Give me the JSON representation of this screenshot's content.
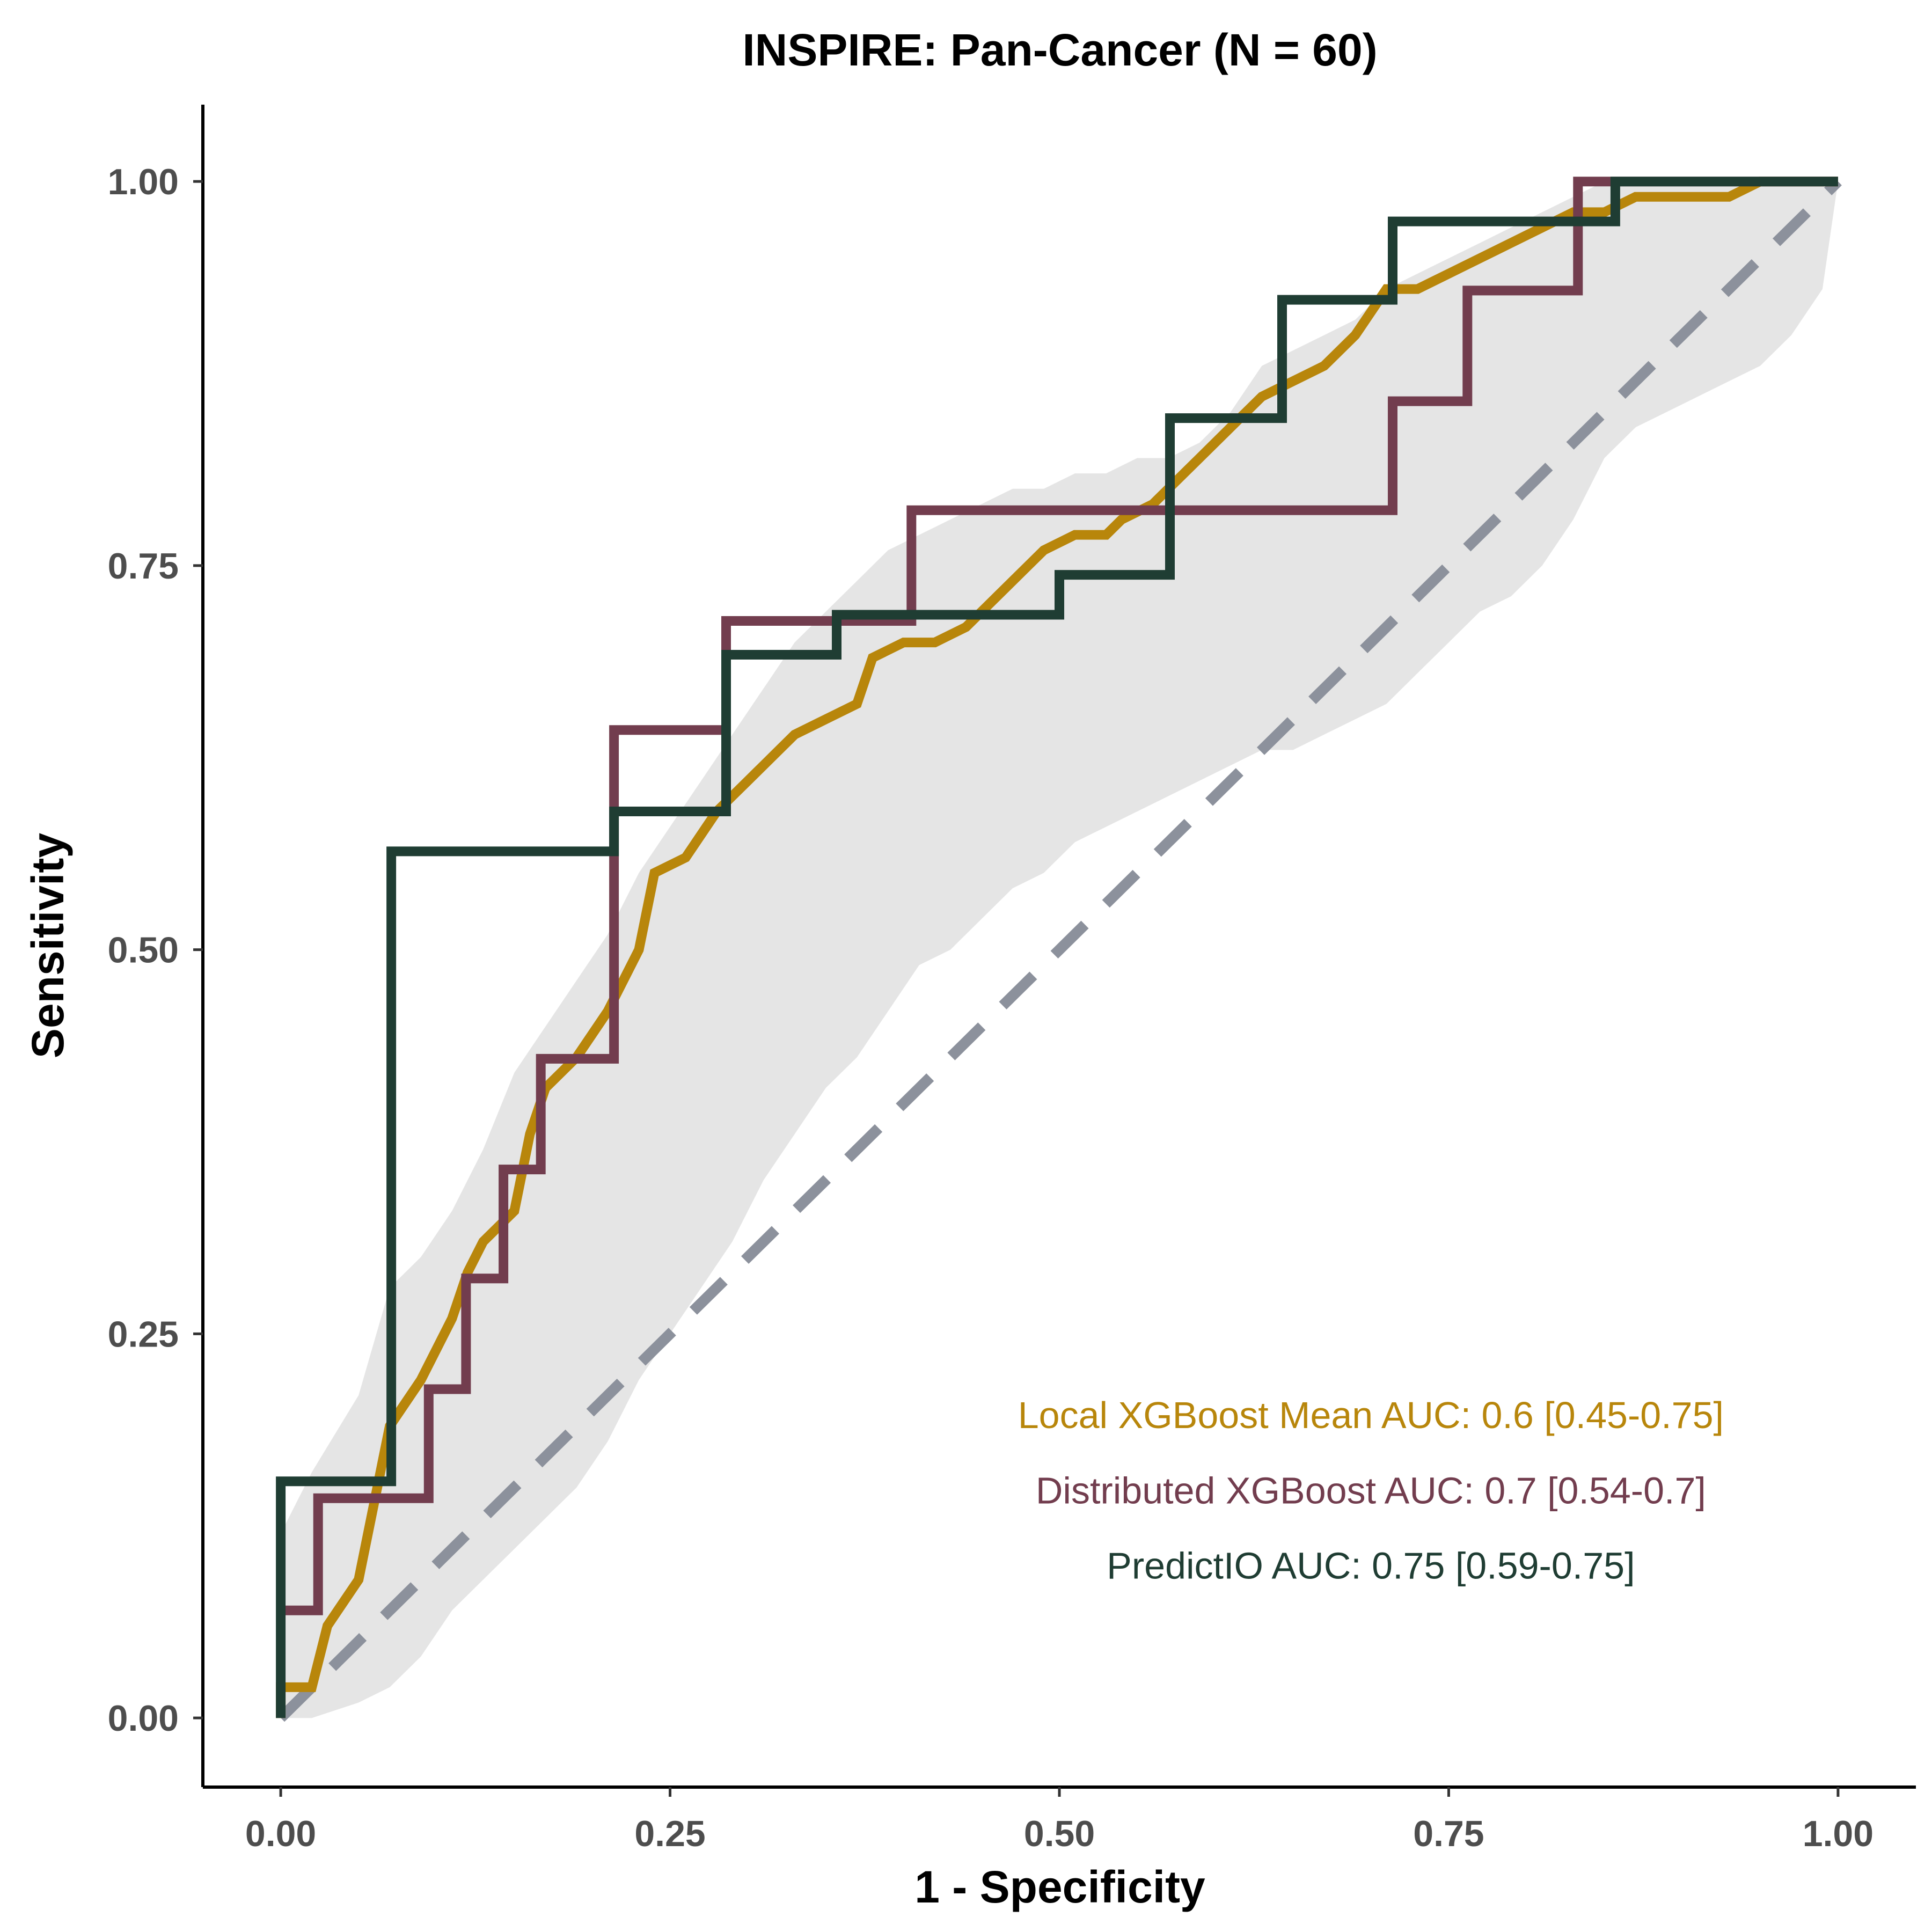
{
  "chart_data": {
    "type": "line",
    "title": "INSPIRE: Pan-Cancer (N = 60)",
    "xlabel": "1 - Specificity",
    "ylabel": "Sensitivity",
    "xlim": [
      -0.05,
      1.05
    ],
    "ylim": [
      -0.045,
      1.05
    ],
    "xticks": [
      0,
      0.25,
      0.5,
      0.75,
      1
    ],
    "yticks": [
      0,
      0.25,
      0.5,
      0.75,
      1
    ],
    "xtick_labels": [
      "0.00",
      "0.25",
      "0.50",
      "0.75",
      "1.00"
    ],
    "ytick_labels": [
      "0.00",
      "0.25",
      "0.50",
      "0.75",
      "1.00"
    ],
    "grid": false,
    "legend": "none",
    "confidence_band": {
      "color": "#e5e5e5",
      "x": [
        0,
        0.02,
        0.05,
        0.07,
        0.09,
        0.11,
        0.13,
        0.15,
        0.17,
        0.19,
        0.21,
        0.23,
        0.25,
        0.27,
        0.29,
        0.31,
        0.33,
        0.35,
        0.37,
        0.39,
        0.41,
        0.43,
        0.45,
        0.47,
        0.49,
        0.51,
        0.53,
        0.55,
        0.57,
        0.59,
        0.61,
        0.63,
        0.65,
        0.67,
        0.69,
        0.71,
        0.73,
        0.75,
        0.77,
        0.79,
        0.81,
        0.83,
        0.85,
        0.87,
        0.89,
        0.91,
        0.93,
        0.95,
        0.97,
        0.99,
        1
      ],
      "upper": [
        0.12,
        0.16,
        0.21,
        0.28,
        0.3,
        0.33,
        0.37,
        0.42,
        0.45,
        0.48,
        0.51,
        0.55,
        0.58,
        0.61,
        0.64,
        0.67,
        0.7,
        0.72,
        0.74,
        0.76,
        0.77,
        0.78,
        0.79,
        0.8,
        0.8,
        0.81,
        0.81,
        0.82,
        0.82,
        0.83,
        0.85,
        0.88,
        0.89,
        0.9,
        0.91,
        0.93,
        0.94,
        0.95,
        0.96,
        0.97,
        0.98,
        0.99,
        1,
        1,
        1,
        1,
        1,
        1,
        1,
        1,
        1
      ],
      "lower": [
        0,
        0,
        0.01,
        0.02,
        0.04,
        0.07,
        0.09,
        0.11,
        0.13,
        0.15,
        0.18,
        0.22,
        0.25,
        0.28,
        0.31,
        0.35,
        0.38,
        0.41,
        0.43,
        0.46,
        0.49,
        0.5,
        0.52,
        0.54,
        0.55,
        0.57,
        0.58,
        0.59,
        0.6,
        0.61,
        0.62,
        0.63,
        0.63,
        0.64,
        0.65,
        0.66,
        0.68,
        0.7,
        0.72,
        0.73,
        0.75,
        0.78,
        0.82,
        0.84,
        0.85,
        0.86,
        0.87,
        0.88,
        0.9,
        0.93,
        1
      ]
    },
    "diagonal": {
      "color": "#8c919c",
      "from": [
        0,
        0
      ],
      "to": [
        1,
        1
      ],
      "dashed": true
    },
    "series": [
      {
        "color": "#b8860b",
        "x": [
          0,
          0,
          0.02,
          0.03,
          0.03,
          0.05,
          0.05,
          0.06,
          0.06,
          0.07,
          0.07,
          0.09,
          0.09,
          0.11,
          0.11,
          0.12,
          0.12,
          0.13,
          0.13,
          0.15,
          0.15,
          0.16,
          0.16,
          0.17,
          0.17,
          0.19,
          0.19,
          0.21,
          0.21,
          0.23,
          0.23,
          0.24,
          0.24,
          0.26,
          0.26,
          0.28,
          0.28,
          0.29,
          0.29,
          0.31,
          0.31,
          0.33,
          0.33,
          0.35,
          0.35,
          0.37,
          0.37,
          0.38,
          0.38,
          0.4,
          0.4,
          0.42,
          0.42,
          0.44,
          0.44,
          0.46,
          0.46,
          0.48,
          0.48,
          0.49,
          0.49,
          0.51,
          0.51,
          0.53,
          0.53,
          0.54,
          0.54,
          0.56,
          0.56,
          0.58,
          0.58,
          0.59,
          0.59,
          0.61,
          0.61,
          0.63,
          0.63,
          0.65,
          0.65,
          0.67,
          0.67,
          0.69,
          0.69,
          0.71,
          0.71,
          0.73,
          0.73,
          0.75,
          0.75,
          0.77,
          0.77,
          0.79,
          0.79,
          0.81,
          0.81,
          0.83,
          0.83,
          0.85,
          0.85,
          0.87,
          0.87,
          0.89,
          0.89,
          0.91,
          0.91,
          0.93,
          0.93,
          0.95,
          0.95,
          0.97,
          0.97,
          0.99,
          1.0
        ],
        "y": [
          0,
          0.02,
          0.02,
          0.06,
          0.06,
          0.09,
          0.09,
          0.14,
          0.14,
          0.19,
          0.19,
          0.22,
          0.22,
          0.26,
          0.26,
          0.29,
          0.29,
          0.31,
          0.31,
          0.33,
          0.33,
          0.38,
          0.38,
          0.41,
          0.41,
          0.43,
          0.43,
          0.46,
          0.46,
          0.5,
          0.5,
          0.55,
          0.55,
          0.56,
          0.56,
          0.59,
          0.59,
          0.6,
          0.6,
          0.62,
          0.62,
          0.64,
          0.64,
          0.65,
          0.65,
          0.66,
          0.66,
          0.69,
          0.69,
          0.7,
          0.7,
          0.7,
          0.7,
          0.71,
          0.71,
          0.73,
          0.73,
          0.75,
          0.75,
          0.76,
          0.76,
          0.77,
          0.77,
          0.77,
          0.77,
          0.78,
          0.78,
          0.79,
          0.79,
          0.81,
          0.81,
          0.82,
          0.82,
          0.84,
          0.84,
          0.86,
          0.86,
          0.87,
          0.87,
          0.88,
          0.88,
          0.9,
          0.9,
          0.93,
          0.93,
          0.93,
          0.93,
          0.94,
          0.94,
          0.95,
          0.95,
          0.96,
          0.96,
          0.97,
          0.97,
          0.98,
          0.98,
          0.98,
          0.98,
          0.99,
          0.99,
          0.99,
          0.99,
          0.99,
          0.99,
          0.99,
          0.99,
          1.0,
          1.0,
          1.0,
          1.0,
          1.0,
          1.0
        ]
      },
      {
        "color": "#723d4e",
        "x": [
          0,
          0.024,
          0.024,
          0.095,
          0.095,
          0.119,
          0.119,
          0.143,
          0.143,
          0.167,
          0.167,
          0.214,
          0.214,
          0.238,
          0.238,
          0.262,
          0.262,
          0.286,
          0.286,
          0.31,
          0.31,
          0.333,
          0.333,
          0.357,
          0.357,
          0.381,
          0.381,
          0.405,
          0.405,
          0.429,
          0.429,
          0.452,
          0.452,
          0.476,
          0.476,
          0.5,
          0.5,
          0.524,
          0.524,
          0.548,
          0.548,
          0.571,
          0.571,
          0.595,
          0.595,
          0.619,
          0.619,
          0.643,
          0.643,
          0.667,
          0.667,
          0.69,
          0.69,
          0.714,
          0.714,
          0.762,
          0.762,
          0.786,
          0.786,
          0.833,
          0.833,
          0.857,
          0.857,
          1.0
        ],
        "y": [
          0.07,
          0.07,
          0.143,
          0.143,
          0.214,
          0.214,
          0.286,
          0.286,
          0.357,
          0.357,
          0.429,
          0.429,
          0.643,
          0.643,
          0.643,
          0.643,
          0.643,
          0.643,
          0.714,
          0.714,
          0.714,
          0.714,
          0.714,
          0.714,
          0.714,
          0.714,
          0.714,
          0.714,
          0.786,
          0.786,
          0.786,
          0.786,
          0.786,
          0.786,
          0.786,
          0.786,
          0.786,
          0.786,
          0.786,
          0.786,
          0.786,
          0.786,
          0.786,
          0.786,
          0.786,
          0.786,
          0.786,
          0.786,
          0.786,
          0.786,
          0.786,
          0.786,
          0.786,
          0.786,
          0.857,
          0.857,
          0.929,
          0.929,
          0.929,
          0.929,
          1.0,
          1.0,
          1.0,
          1.0
        ]
      },
      {
        "color": "#1f3d33",
        "x": [
          0,
          0,
          0.071,
          0.071,
          0.214,
          0.214,
          0.286,
          0.286,
          0.357,
          0.357,
          0.5,
          0.5,
          0.571,
          0.571,
          0.643,
          0.643,
          0.714,
          0.714,
          0.857,
          0.857,
          1.0
        ],
        "y": [
          0,
          0.154,
          0.154,
          0.564,
          0.564,
          0.59,
          0.59,
          0.692,
          0.692,
          0.718,
          0.718,
          0.744,
          0.744,
          0.846,
          0.846,
          0.923,
          0.923,
          0.974,
          0.974,
          1.0,
          1.0
        ]
      }
    ],
    "annotations": [
      {
        "text": "Local XGBoost Mean AUC: 0.6 [0.45-0.75]",
        "color": "#b8860b",
        "x": 0.7,
        "y": 0.197
      },
      {
        "text": "Distributed XGBoost AUC: 0.7 [0.54-0.7]",
        "color": "#723d4e",
        "x": 0.7,
        "y": 0.148
      },
      {
        "text": "PredictIO AUC: 0.75 [0.59-0.75]",
        "color": "#1f3d33",
        "x": 0.7,
        "y": 0.099
      }
    ]
  }
}
